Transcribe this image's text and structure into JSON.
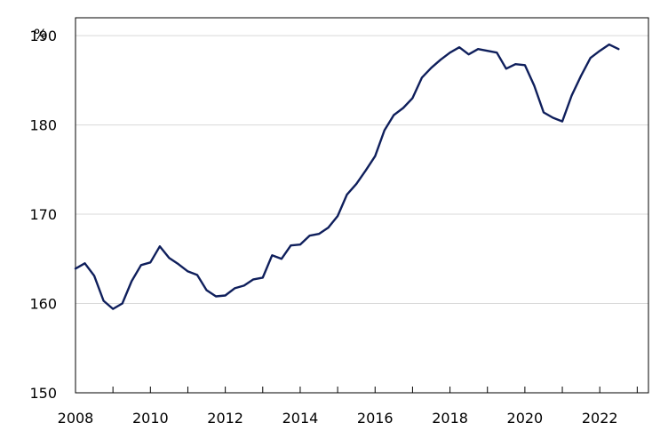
{
  "chart_data": {
    "type": "line",
    "ylabel": "%",
    "xlim": [
      2008,
      2023.3
    ],
    "ylim": [
      150,
      192
    ],
    "x_ticks": [
      2008,
      2010,
      2012,
      2014,
      2016,
      2018,
      2020,
      2022
    ],
    "x_tick_labels": [
      "2008",
      "2010",
      "2012",
      "2014",
      "2016",
      "2018",
      "2020",
      "2022"
    ],
    "y_ticks": [
      150,
      160,
      170,
      180,
      190
    ],
    "y_tick_labels": [
      "150",
      "160",
      "170",
      "180",
      "190"
    ],
    "grid": "horizontal",
    "legend": "none",
    "line_color": "#0f1f5c",
    "series": [
      {
        "x": [
          2008.0,
          2008.25,
          2008.5,
          2008.75,
          2009.0,
          2009.25,
          2009.5,
          2009.75,
          2010.0,
          2010.25,
          2010.5,
          2010.75,
          2011.0,
          2011.25,
          2011.5,
          2011.75,
          2012.0,
          2012.25,
          2012.5,
          2012.75,
          2013.0,
          2013.25,
          2013.5,
          2013.75,
          2014.0,
          2014.25,
          2014.5,
          2014.75,
          2015.0,
          2015.25,
          2015.5,
          2015.75,
          2016.0,
          2016.25,
          2016.5,
          2016.75,
          2017.0,
          2017.25,
          2017.5,
          2017.75,
          2018.0,
          2018.25,
          2018.5,
          2018.75,
          2019.0,
          2019.25,
          2019.5,
          2019.75,
          2020.0,
          2020.25,
          2020.5,
          2020.75,
          2021.0,
          2021.25,
          2021.5,
          2021.75,
          2022.0,
          2022.25,
          2022.5
        ],
        "values": [
          163.9,
          164.5,
          163.1,
          160.3,
          159.4,
          160.0,
          162.5,
          164.3,
          164.6,
          166.4,
          165.1,
          164.4,
          163.6,
          163.2,
          161.5,
          160.8,
          160.9,
          161.7,
          162.0,
          162.7,
          162.9,
          165.4,
          165.0,
          166.5,
          166.6,
          167.6,
          167.8,
          168.5,
          169.8,
          172.2,
          173.4,
          174.9,
          176.5,
          179.4,
          181.1,
          181.9,
          183.0,
          185.3,
          186.4,
          187.3,
          188.1,
          188.7,
          187.9,
          188.5,
          188.3,
          188.1,
          186.3,
          186.8,
          186.7,
          184.4,
          181.4,
          180.8,
          180.4,
          183.3,
          185.5,
          187.5,
          188.3,
          189.0,
          188.5
        ]
      }
    ]
  }
}
